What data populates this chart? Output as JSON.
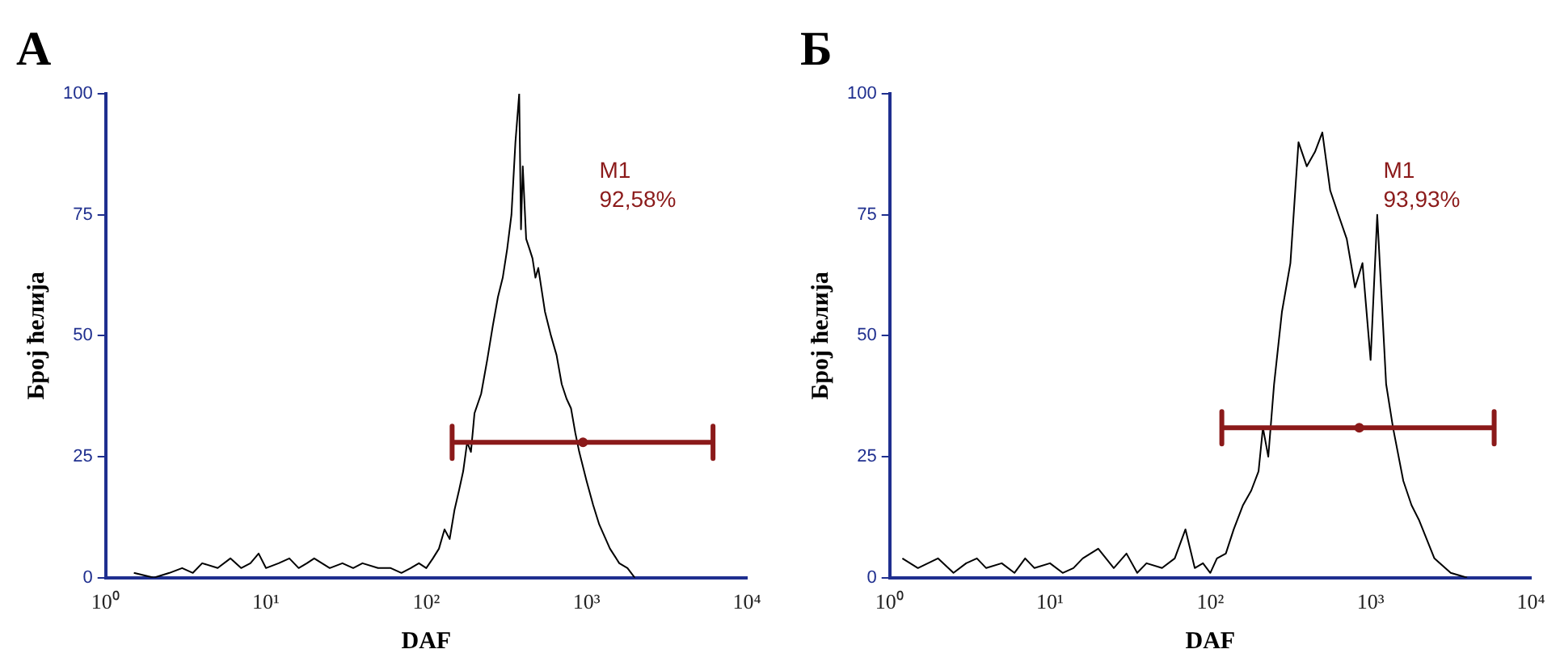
{
  "chart_data": [
    {
      "type": "line",
      "title": "А",
      "xlabel": "DAF",
      "ylabel": "Број ћелија",
      "log": "x",
      "xlim": [
        1,
        10000
      ],
      "ylim": [
        0,
        100
      ],
      "xticks": [
        {
          "value": 1,
          "label": "10⁰"
        },
        {
          "value": 10,
          "label": "10¹"
        },
        {
          "value": 100,
          "label": "10²"
        },
        {
          "value": 1000,
          "label": "10³"
        },
        {
          "value": 10000,
          "label": "10⁴"
        }
      ],
      "yticks": [
        0,
        25,
        50,
        75,
        100
      ],
      "grid": false,
      "legend": false,
      "series": [
        {
          "color": "#000000",
          "x": [
            1.5,
            2,
            2.5,
            3,
            3.5,
            4,
            5,
            6,
            7,
            8,
            9,
            10,
            12,
            14,
            16,
            18,
            20,
            25,
            30,
            35,
            40,
            50,
            60,
            70,
            80,
            90,
            100,
            110,
            120,
            130,
            140,
            150,
            160,
            170,
            180,
            190,
            200,
            220,
            240,
            260,
            280,
            300,
            320,
            340,
            360,
            380,
            390,
            400,
            420,
            440,
            460,
            480,
            500,
            550,
            600,
            650,
            700,
            750,
            800,
            850,
            900,
            1000,
            1100,
            1200,
            1400,
            1600,
            1800,
            2000
          ],
          "values": [
            1,
            0,
            1,
            2,
            1,
            3,
            2,
            4,
            2,
            3,
            5,
            2,
            3,
            4,
            2,
            3,
            4,
            2,
            3,
            2,
            3,
            2,
            2,
            1,
            2,
            3,
            2,
            4,
            6,
            10,
            8,
            14,
            18,
            22,
            28,
            26,
            34,
            38,
            45,
            52,
            58,
            62,
            68,
            75,
            90,
            100,
            72,
            85,
            70,
            68,
            66,
            62,
            64,
            55,
            50,
            46,
            40,
            37,
            35,
            30,
            26,
            20,
            15,
            11,
            6,
            3,
            2,
            0
          ]
        },
        {
          "type": "scatter",
          "color": "#8b1a1a",
          "x": [
            950
          ],
          "values": [
            28
          ],
          "xerrors": [
            [
              145,
              6150
            ]
          ]
        }
      ],
      "annotations": [
        "M1",
        "92,58%"
      ]
    },
    {
      "type": "line",
      "title": "Б",
      "xlabel": "DAF",
      "ylabel": "Број ћелија",
      "log": "x",
      "xlim": [
        1,
        10000
      ],
      "ylim": [
        0,
        100
      ],
      "xticks": [
        {
          "value": 1,
          "label": "10⁰"
        },
        {
          "value": 10,
          "label": "10¹"
        },
        {
          "value": 100,
          "label": "10²"
        },
        {
          "value": 1000,
          "label": "10³"
        },
        {
          "value": 10000,
          "label": "10⁴"
        }
      ],
      "yticks": [
        0,
        25,
        50,
        75,
        100
      ],
      "grid": false,
      "legend": false,
      "series": [
        {
          "color": "#000000",
          "x": [
            1.2,
            1.5,
            2,
            2.5,
            3,
            3.5,
            4,
            5,
            6,
            7,
            8,
            10,
            12,
            14,
            16,
            20,
            25,
            30,
            35,
            40,
            50,
            60,
            70,
            80,
            90,
            100,
            110,
            125,
            140,
            160,
            180,
            200,
            213,
            230,
            250,
            280,
            316,
            355,
            400,
            450,
            500,
            560,
            630,
            710,
            800,
            890,
            1000,
            1100,
            1250,
            1380,
            1600,
            1800,
            2000,
            2500,
            3160,
            4000
          ],
          "values": [
            4,
            2,
            4,
            1,
            3,
            4,
            2,
            3,
            1,
            4,
            2,
            3,
            1,
            2,
            4,
            6,
            2,
            5,
            1,
            3,
            2,
            4,
            10,
            2,
            3,
            1,
            4,
            5,
            10,
            15,
            18,
            22,
            31,
            25,
            40,
            55,
            65,
            90,
            85,
            88,
            92,
            80,
            75,
            70,
            60,
            65,
            45,
            75,
            40,
            31,
            20,
            15,
            12,
            4,
            1,
            0
          ]
        },
        {
          "type": "scatter",
          "color": "#8b1a1a",
          "x": [
            850
          ],
          "values": [
            31
          ],
          "xerrors": [
            [
              118,
              5900
            ]
          ]
        }
      ],
      "annotations": [
        "M1",
        "93,93%"
      ]
    }
  ]
}
